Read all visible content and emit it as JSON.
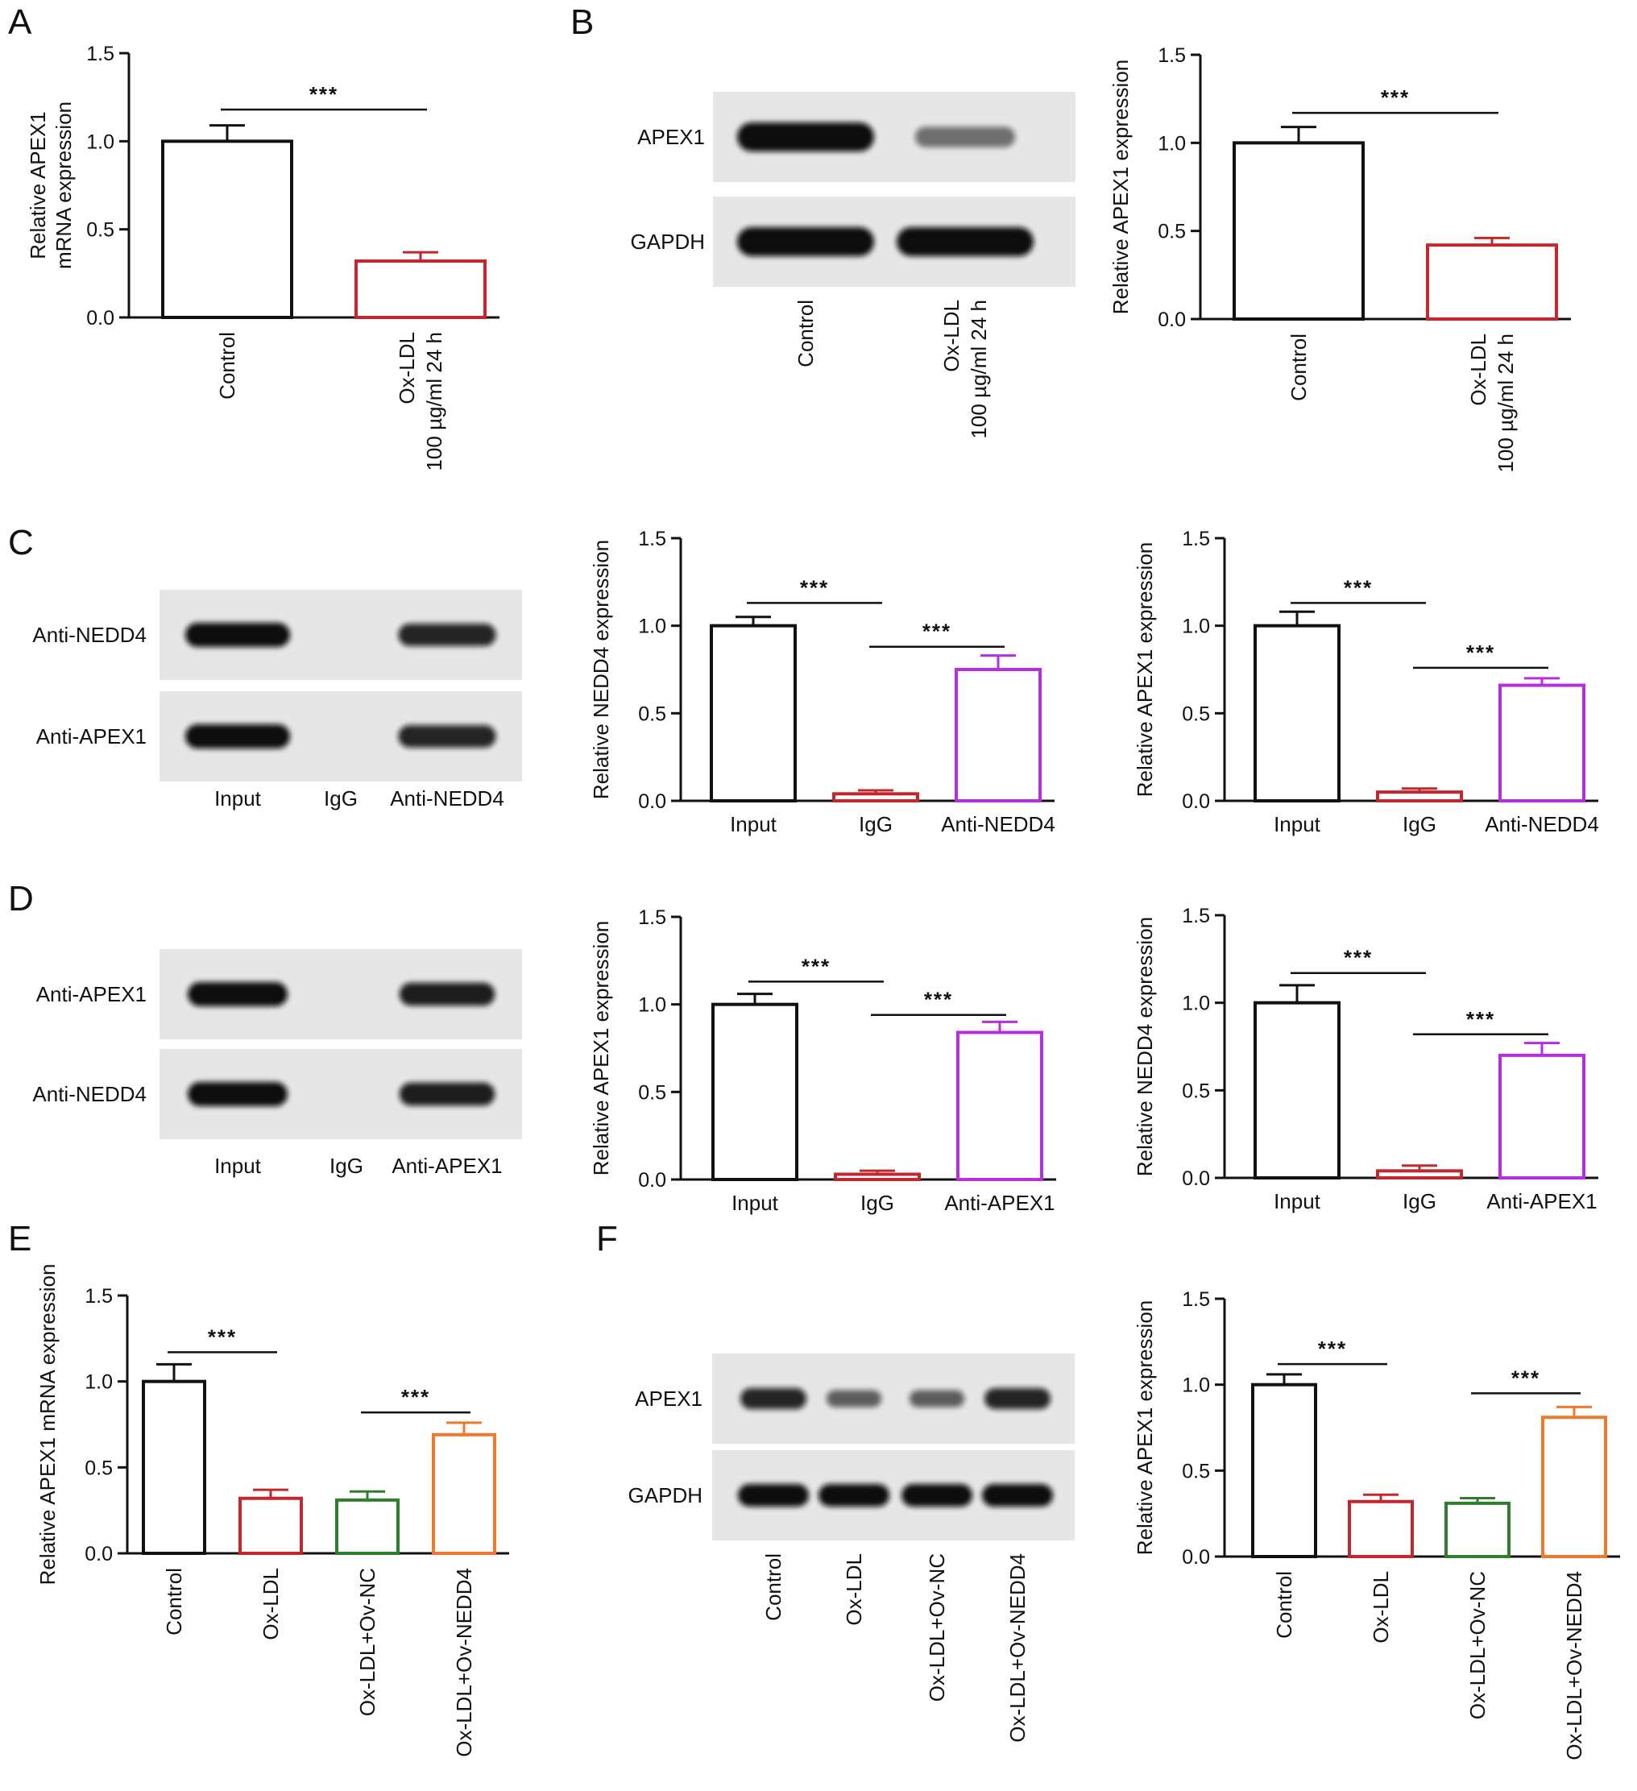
{
  "panel_letters": [
    "A",
    "B",
    "C",
    "D",
    "E",
    "F"
  ],
  "colors": {
    "control": "#111111",
    "red": "#c0282d",
    "purple": "#b62ee0",
    "green": "#2f7d2f",
    "orange": "#f0782c"
  },
  "blots": [
    {
      "panel": "B",
      "rows": [
        "APEX1",
        "GAPDH"
      ],
      "lanes": [
        "Control",
        "Ox-LDL\n100 µg/ml 24 h"
      ],
      "lane_labels_rotated": true,
      "band_intensity": [
        [
          1.0,
          0.4
        ],
        [
          1.0,
          1.0
        ]
      ]
    },
    {
      "panel": "C",
      "rows": [
        "Anti-NEDD4",
        "Anti-APEX1"
      ],
      "lanes": [
        "Input",
        "IgG",
        "Anti-NEDD4"
      ],
      "lane_labels_rotated": false,
      "band_intensity": [
        [
          1.0,
          0.0,
          0.85
        ],
        [
          1.0,
          0.0,
          0.85
        ]
      ]
    },
    {
      "panel": "D",
      "rows": [
        "Anti-APEX1",
        "Anti-NEDD4"
      ],
      "lanes": [
        "Input",
        "IgG",
        "Anti-APEX1"
      ],
      "lane_labels_rotated": false,
      "band_intensity": [
        [
          1.0,
          0.0,
          0.9
        ],
        [
          1.0,
          0.0,
          0.9
        ]
      ]
    },
    {
      "panel": "F",
      "rows": [
        "APEX1",
        "GAPDH"
      ],
      "lanes": [
        "Control",
        "Ox-LDL",
        "Ox-LDL+Ov-NC",
        "Ox-LDL+Ov-NEDD4"
      ],
      "lane_labels_rotated": true,
      "band_intensity": [
        [
          0.85,
          0.5,
          0.5,
          0.85
        ],
        [
          1.0,
          1.0,
          1.0,
          1.0
        ]
      ]
    }
  ],
  "chart_data": [
    {
      "id": "A",
      "type": "bar",
      "ylabel": "Relative APEX1\nmRNA expression",
      "ylim": [
        0,
        1.5
      ],
      "yticks": [
        "0.0",
        "0.5",
        "1.0",
        "1.5"
      ],
      "categories": [
        "Control",
        "Ox-LDL\n100 µg/ml 24 h"
      ],
      "values": [
        1.0,
        0.32
      ],
      "errors": [
        0.09,
        0.05
      ],
      "bar_colors": [
        "control",
        "red"
      ],
      "rotated_labels": true,
      "significance": [
        {
          "from": 0,
          "to": 1,
          "label": "***",
          "y": 1.18
        }
      ]
    },
    {
      "id": "B",
      "type": "bar",
      "ylabel": "Relative APEX1 expression",
      "ylim": [
        0,
        1.5
      ],
      "yticks": [
        "0.0",
        "0.5",
        "1.0",
        "1.5"
      ],
      "categories": [
        "Control",
        "Ox-LDL\n100 µg/ml 24 h"
      ],
      "values": [
        1.0,
        0.42
      ],
      "errors": [
        0.09,
        0.04
      ],
      "bar_colors": [
        "control",
        "red"
      ],
      "rotated_labels": true,
      "significance": [
        {
          "from": 0,
          "to": 1,
          "label": "***",
          "y": 1.17
        }
      ]
    },
    {
      "id": "C1",
      "type": "bar",
      "ylabel": "Relative NEDD4 expression",
      "ylim": [
        0,
        1.5
      ],
      "yticks": [
        "0.0",
        "0.5",
        "1.0",
        "1.5"
      ],
      "categories": [
        "Input",
        "IgG",
        "Anti-NEDD4"
      ],
      "values": [
        1.0,
        0.04,
        0.75
      ],
      "errors": [
        0.05,
        0.02,
        0.08
      ],
      "bar_colors": [
        "control",
        "red",
        "purple"
      ],
      "rotated_labels": false,
      "significance": [
        {
          "from": 0,
          "to": 1,
          "label": "***",
          "y": 1.13
        },
        {
          "from": 1,
          "to": 2,
          "label": "***",
          "y": 0.88
        }
      ]
    },
    {
      "id": "C2",
      "type": "bar",
      "ylabel": "Relative APEX1 expression",
      "ylim": [
        0,
        1.5
      ],
      "yticks": [
        "0.0",
        "0.5",
        "1.0",
        "1.5"
      ],
      "categories": [
        "Input",
        "IgG",
        "Anti-NEDD4"
      ],
      "values": [
        1.0,
        0.05,
        0.66
      ],
      "errors": [
        0.08,
        0.02,
        0.04
      ],
      "bar_colors": [
        "control",
        "red",
        "purple"
      ],
      "rotated_labels": false,
      "significance": [
        {
          "from": 0,
          "to": 1,
          "label": "***",
          "y": 1.13
        },
        {
          "from": 1,
          "to": 2,
          "label": "***",
          "y": 0.76
        }
      ]
    },
    {
      "id": "D1",
      "type": "bar",
      "ylabel": "Relative APEX1 expression",
      "ylim": [
        0,
        1.5
      ],
      "yticks": [
        "0.0",
        "0.5",
        "1.0",
        "1.5"
      ],
      "categories": [
        "Input",
        "IgG",
        "Anti-APEX1"
      ],
      "values": [
        1.0,
        0.03,
        0.84
      ],
      "errors": [
        0.06,
        0.02,
        0.06
      ],
      "bar_colors": [
        "control",
        "red",
        "purple"
      ],
      "rotated_labels": false,
      "significance": [
        {
          "from": 0,
          "to": 1,
          "label": "***",
          "y": 1.13
        },
        {
          "from": 1,
          "to": 2,
          "label": "***",
          "y": 0.94
        }
      ]
    },
    {
      "id": "D2",
      "type": "bar",
      "ylabel": "Relative NEDD4 expression",
      "ylim": [
        0,
        1.5
      ],
      "yticks": [
        "0.0",
        "0.5",
        "1.0",
        "1.5"
      ],
      "categories": [
        "Input",
        "IgG",
        "Anti-APEX1"
      ],
      "values": [
        1.0,
        0.04,
        0.7
      ],
      "errors": [
        0.1,
        0.03,
        0.07
      ],
      "bar_colors": [
        "control",
        "red",
        "purple"
      ],
      "rotated_labels": false,
      "significance": [
        {
          "from": 0,
          "to": 1,
          "label": "***",
          "y": 1.17
        },
        {
          "from": 1,
          "to": 2,
          "label": "***",
          "y": 0.82
        }
      ]
    },
    {
      "id": "E",
      "type": "bar",
      "ylabel": "Relative APEX1 mRNA expression",
      "ylim": [
        0,
        1.5
      ],
      "yticks": [
        "0.0",
        "0.5",
        "1.0",
        "1.5"
      ],
      "categories": [
        "Control",
        "Ox-LDL",
        "Ox-LDL+Ov-NC",
        "Ox-LDL+Ov-NEDD4"
      ],
      "values": [
        1.0,
        0.32,
        0.31,
        0.69
      ],
      "errors": [
        0.1,
        0.05,
        0.05,
        0.07
      ],
      "bar_colors": [
        "control",
        "red",
        "green",
        "orange"
      ],
      "rotated_labels": true,
      "significance": [
        {
          "from": 0,
          "to": 1,
          "label": "***",
          "y": 1.17
        },
        {
          "from": 2,
          "to": 3,
          "label": "***",
          "y": 0.82
        }
      ]
    },
    {
      "id": "F",
      "type": "bar",
      "ylabel": "Relative APEX1 expression",
      "ylim": [
        0,
        1.5
      ],
      "yticks": [
        "0.0",
        "0.5",
        "1.0",
        "1.5"
      ],
      "categories": [
        "Control",
        "Ox-LDL",
        "Ox-LDL+Ov-NC",
        "Ox-LDL+Ov-NEDD4"
      ],
      "values": [
        1.0,
        0.32,
        0.31,
        0.81
      ],
      "errors": [
        0.06,
        0.04,
        0.03,
        0.06
      ],
      "bar_colors": [
        "control",
        "red",
        "green",
        "orange"
      ],
      "rotated_labels": true,
      "significance": [
        {
          "from": 0,
          "to": 1,
          "label": "***",
          "y": 1.12
        },
        {
          "from": 2,
          "to": 3,
          "label": "***",
          "y": 0.95
        }
      ]
    }
  ]
}
